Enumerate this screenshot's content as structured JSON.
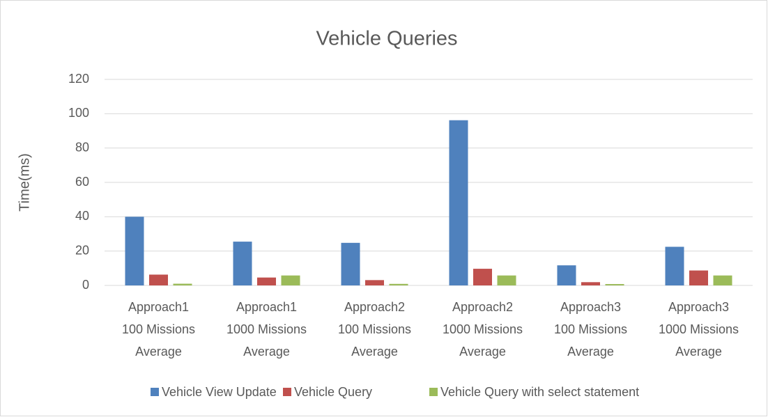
{
  "chart_data": {
    "type": "bar",
    "title": "Vehicle Queries",
    "y_label": "Time(ms)",
    "categories": [
      [
        "Approach1",
        "100 Missions",
        "Average"
      ],
      [
        "Approach1",
        "1000 Missions",
        "Average"
      ],
      [
        "Approach2",
        "100 Missions",
        "Average"
      ],
      [
        "Approach2",
        "1000 Missions",
        "Average"
      ],
      [
        "Approach3",
        "100 Missions",
        "Average"
      ],
      [
        "Approach3",
        "1000 Missions",
        "Average"
      ]
    ],
    "series": [
      {
        "name": "Vehicle View Update",
        "color": "#4f81bd",
        "values": [
          40,
          25.5,
          24.8,
          96.2,
          11.7,
          22.5
        ]
      },
      {
        "name": "Vehicle Query",
        "color": "#c0504d",
        "values": [
          6.3,
          4.6,
          3.1,
          9.7,
          1.9,
          8.7
        ]
      },
      {
        "name": "Vehicle Query with select statement",
        "color": "#9bbb59",
        "values": [
          1,
          5.8,
          0.9,
          5.8,
          0.8,
          5.8
        ]
      }
    ],
    "ylim": [
      0,
      120
    ],
    "yticks": [
      0,
      20,
      40,
      60,
      80,
      100,
      120
    ],
    "grid": true,
    "legend": "bottom"
  }
}
